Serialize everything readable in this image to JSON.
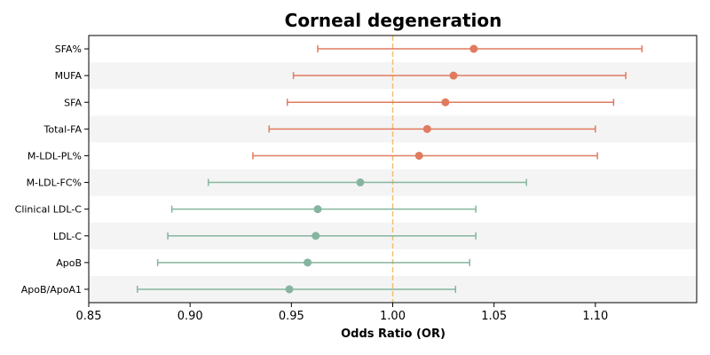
{
  "chart_data": {
    "type": "forest",
    "title": "Corneal degeneration",
    "xlabel": "Odds Ratio (OR)",
    "ylabel": "",
    "xlim": [
      0.85,
      1.15
    ],
    "x_ticks": [
      0.85,
      0.9,
      0.95,
      1.0,
      1.05,
      1.1
    ],
    "x_tick_labels": [
      "0.85",
      "0.90",
      "0.95",
      "1.00",
      "1.05",
      "1.10"
    ],
    "reference_line": 1.0,
    "reference_line_color": "#f0c070",
    "grid": false,
    "row_banding": true,
    "colors": {
      "positive": "#e07b5f",
      "negative": "#86b59f"
    },
    "categories": [
      "SFA%",
      "MUFA",
      "SFA",
      "Total-FA",
      "M-LDL-PL%",
      "M-LDL-FC%",
      "Clinical LDL-C",
      "LDL-C",
      "ApoB",
      "ApoB/ApoA1"
    ],
    "points": [
      {
        "label": "SFA%",
        "or": 1.04,
        "lower": 0.963,
        "upper": 1.123
      },
      {
        "label": "MUFA",
        "or": 1.03,
        "lower": 0.951,
        "upper": 1.115
      },
      {
        "label": "SFA",
        "or": 1.026,
        "lower": 0.948,
        "upper": 1.109
      },
      {
        "label": "Total-FA",
        "or": 1.017,
        "lower": 0.939,
        "upper": 1.1
      },
      {
        "label": "M-LDL-PL%",
        "or": 1.013,
        "lower": 0.931,
        "upper": 1.101
      },
      {
        "label": "M-LDL-FC%",
        "or": 0.984,
        "lower": 0.909,
        "upper": 1.066
      },
      {
        "label": "Clinical LDL-C",
        "or": 0.963,
        "lower": 0.891,
        "upper": 1.041
      },
      {
        "label": "LDL-C",
        "or": 0.962,
        "lower": 0.889,
        "upper": 1.041
      },
      {
        "label": "ApoB",
        "or": 0.958,
        "lower": 0.884,
        "upper": 1.038
      },
      {
        "label": "ApoB/ApoA1",
        "or": 0.949,
        "lower": 0.874,
        "upper": 1.031
      }
    ]
  }
}
